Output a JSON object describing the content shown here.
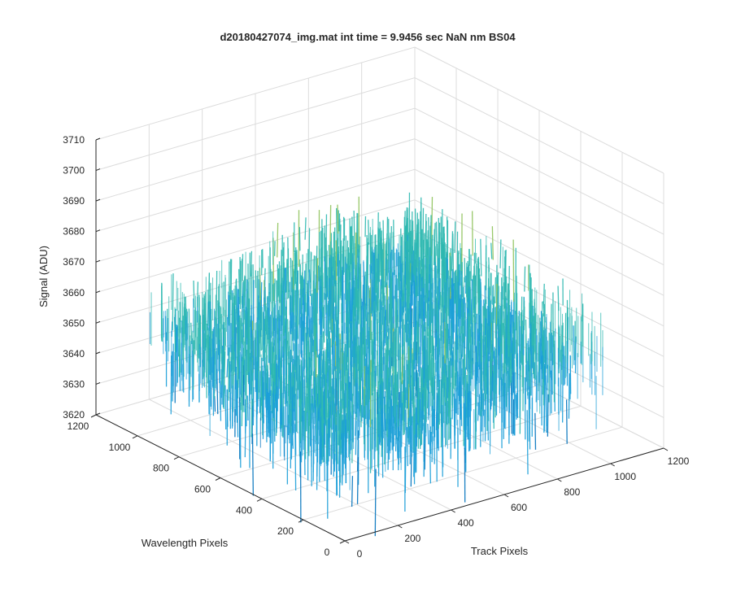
{
  "chart_data": {
    "type": "surface",
    "title": "d20180427074_img.mat int time = 9.9456 sec  NaN nm BS04",
    "xlabel": "Track Pixels",
    "ylabel": "Wavelength Pixels",
    "zlabel": "Signal (ADU)",
    "xlim": [
      0,
      1200
    ],
    "ylim": [
      0,
      1200
    ],
    "zlim": [
      3620,
      3710
    ],
    "x_ticks": [
      "0",
      "200",
      "400",
      "600",
      "800",
      "1000",
      "1200"
    ],
    "y_ticks": [
      "0",
      "200",
      "400",
      "600",
      "800",
      "1000",
      "1200"
    ],
    "z_ticks": [
      "3620",
      "3630",
      "3640",
      "3650",
      "3660",
      "3670",
      "3680",
      "3690",
      "3700",
      "3710"
    ],
    "data_extent": {
      "x": [
        0,
        1024
      ],
      "y": [
        0,
        1024
      ]
    },
    "signal_mean": 3660,
    "signal_range": [
      3630,
      3705
    ],
    "grid": true,
    "view": "default-3d",
    "colormap": "parula",
    "colors": [
      "#0072bd",
      "#1b9fd8",
      "#2db8b0",
      "#8ec25a",
      "#edb120"
    ]
  }
}
